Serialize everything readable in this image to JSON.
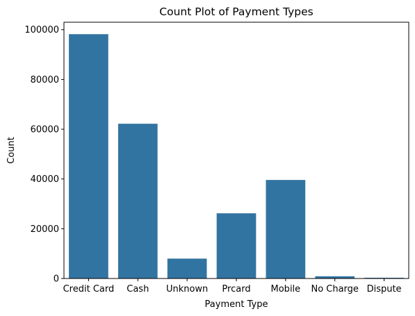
{
  "chart_data": {
    "type": "bar",
    "title": "Count Plot of Payment Types",
    "xlabel": "Payment Type",
    "ylabel": "Count",
    "categories": [
      "Credit Card",
      "Cash",
      "Unknown",
      "Prcard",
      "Mobile",
      "No Charge",
      "Dispute"
    ],
    "values": [
      98200,
      62200,
      8000,
      26200,
      39600,
      900,
      300
    ],
    "ylim": [
      0,
      103000
    ],
    "yticks": [
      0,
      20000,
      40000,
      60000,
      80000,
      100000
    ],
    "ytick_labels": [
      "0",
      "20000",
      "40000",
      "60000",
      "80000",
      "100000"
    ],
    "bar_color": "#3274a1",
    "grid": false,
    "legend": "none"
  }
}
